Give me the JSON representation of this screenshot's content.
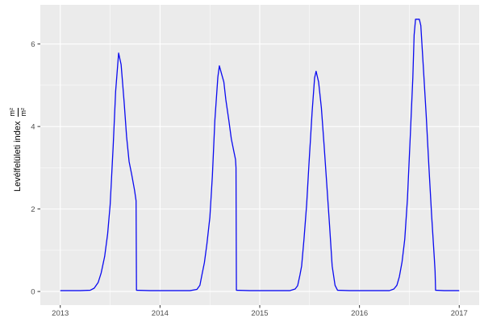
{
  "colors": {
    "background": "#FFFFFF",
    "panel_background": "#EBEBEB",
    "grid_major": "#FFFFFF",
    "grid_minor": "#FFFFFF",
    "line": "#0A0AF0",
    "tick_mark": "#333333",
    "tick_label": "#4D4D4D",
    "axis_title": "#000000"
  },
  "y_axis_title": {
    "text": "Levélfelületi index",
    "unit_numerator": "m²",
    "unit_denominator": "m²"
  },
  "chart_data": {
    "type": "line",
    "title": "",
    "xlabel": "",
    "ylabel": "Levélfelületi index (m²/m²)",
    "x_ticks": [
      2013,
      2014,
      2015,
      2016,
      2017
    ],
    "x_tick_labels": [
      "2013",
      "2014",
      "2015",
      "2016",
      "2017"
    ],
    "x_minor_ticks": [
      2013.5,
      2014.5,
      2015.5,
      2016.5
    ],
    "y_ticks": [
      0,
      2,
      4,
      6
    ],
    "y_tick_labels": [
      "0",
      "2",
      "4",
      "6"
    ],
    "y_minor_ticks": [
      1,
      3,
      5
    ],
    "xlim": [
      2012.8,
      2017.2
    ],
    "ylim": [
      -0.33,
      6.95
    ],
    "grid": true,
    "legend_position": "none",
    "series": [
      {
        "name": "Levélfelületi index",
        "color": "#0A0AF0",
        "points": [
          [
            2013.0,
            0.02
          ],
          [
            2013.1,
            0.02
          ],
          [
            2013.2,
            0.02
          ],
          [
            2013.3,
            0.03
          ],
          [
            2013.34,
            0.08
          ],
          [
            2013.38,
            0.22
          ],
          [
            2013.41,
            0.45
          ],
          [
            2013.445,
            0.85
          ],
          [
            2013.475,
            1.4
          ],
          [
            2013.5,
            2.1
          ],
          [
            2013.53,
            3.5
          ],
          [
            2013.555,
            4.85
          ],
          [
            2013.585,
            5.78
          ],
          [
            2013.61,
            5.5
          ],
          [
            2013.64,
            4.6
          ],
          [
            2013.665,
            3.75
          ],
          [
            2013.69,
            3.15
          ],
          [
            2013.715,
            2.85
          ],
          [
            2013.745,
            2.45
          ],
          [
            2013.76,
            2.2
          ],
          [
            2013.764,
            0.03
          ],
          [
            2013.9,
            0.02
          ],
          [
            2014.1,
            0.02
          ],
          [
            2014.3,
            0.02
          ],
          [
            2014.37,
            0.05
          ],
          [
            2014.4,
            0.15
          ],
          [
            2014.42,
            0.4
          ],
          [
            2014.445,
            0.7
          ],
          [
            2014.47,
            1.15
          ],
          [
            2014.5,
            1.8
          ],
          [
            2014.525,
            2.8
          ],
          [
            2014.55,
            4.15
          ],
          [
            2014.58,
            5.2
          ],
          [
            2014.595,
            5.47
          ],
          [
            2014.62,
            5.25
          ],
          [
            2014.64,
            5.08
          ],
          [
            2014.66,
            4.65
          ],
          [
            2014.69,
            4.15
          ],
          [
            2014.715,
            3.7
          ],
          [
            2014.74,
            3.4
          ],
          [
            2014.757,
            3.2
          ],
          [
            2014.762,
            3.0
          ],
          [
            2014.766,
            0.03
          ],
          [
            2014.9,
            0.02
          ],
          [
            2015.1,
            0.02
          ],
          [
            2015.3,
            0.02
          ],
          [
            2015.355,
            0.06
          ],
          [
            2015.38,
            0.14
          ],
          [
            2015.403,
            0.4
          ],
          [
            2015.42,
            0.62
          ],
          [
            2015.443,
            1.25
          ],
          [
            2015.47,
            2.1
          ],
          [
            2015.495,
            3.15
          ],
          [
            2015.525,
            4.35
          ],
          [
            2015.55,
            5.18
          ],
          [
            2015.565,
            5.34
          ],
          [
            2015.59,
            5.08
          ],
          [
            2015.618,
            4.45
          ],
          [
            2015.645,
            3.55
          ],
          [
            2015.672,
            2.6
          ],
          [
            2015.7,
            1.6
          ],
          [
            2015.726,
            0.62
          ],
          [
            2015.755,
            0.15
          ],
          [
            2015.78,
            0.03
          ],
          [
            2015.9,
            0.02
          ],
          [
            2016.1,
            0.02
          ],
          [
            2016.3,
            0.02
          ],
          [
            2016.345,
            0.06
          ],
          [
            2016.375,
            0.15
          ],
          [
            2016.4,
            0.36
          ],
          [
            2016.427,
            0.72
          ],
          [
            2016.454,
            1.27
          ],
          [
            2016.481,
            2.25
          ],
          [
            2016.508,
            3.7
          ],
          [
            2016.535,
            5.18
          ],
          [
            2016.548,
            6.22
          ],
          [
            2016.562,
            6.6
          ],
          [
            2016.6,
            6.6
          ],
          [
            2016.615,
            6.45
          ],
          [
            2016.642,
            5.37
          ],
          [
            2016.669,
            4.27
          ],
          [
            2016.696,
            3.03
          ],
          [
            2016.723,
            1.86
          ],
          [
            2016.75,
            0.82
          ],
          [
            2016.758,
            0.49
          ],
          [
            2016.763,
            0.03
          ],
          [
            2016.85,
            0.02
          ],
          [
            2016.95,
            0.02
          ],
          [
            2017.0,
            0.02
          ]
        ]
      }
    ]
  }
}
